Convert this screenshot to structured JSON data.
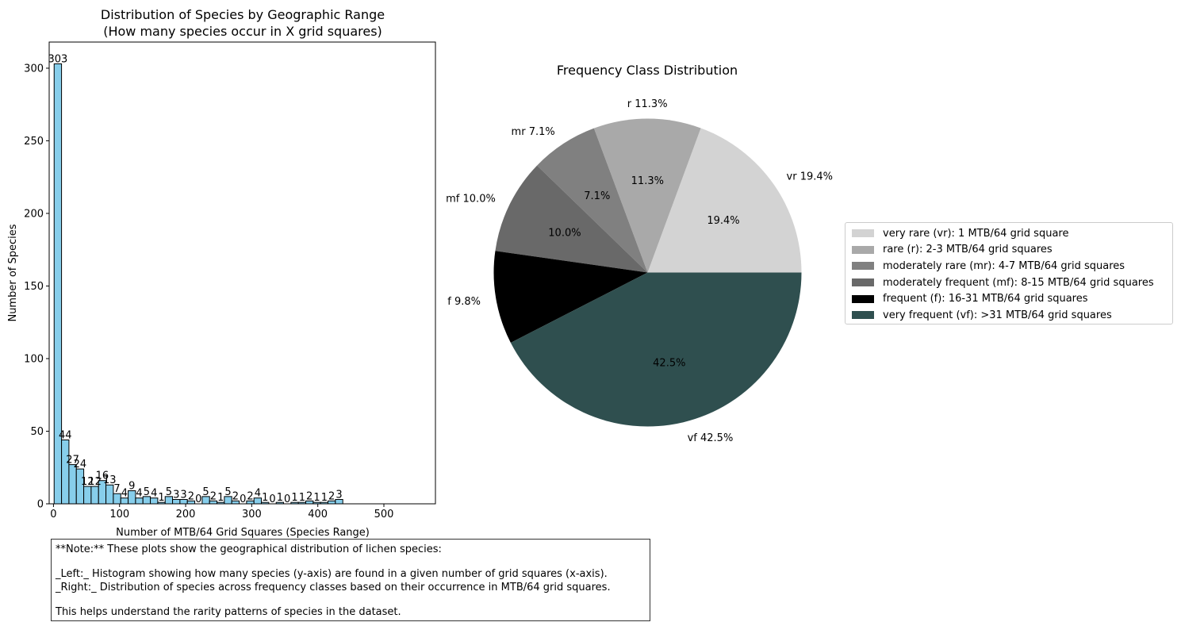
{
  "chart_data": [
    {
      "type": "bar",
      "title": "Distribution of Species by Geographic Range\n(How many species occur in X grid squares)",
      "xlabel": "Number of MTB/64 Grid Squares (Species Range)",
      "ylabel": "Number of Species",
      "bin_start": 1,
      "bin_width": 11.2,
      "values": [
        303,
        44,
        27,
        24,
        12,
        12,
        16,
        13,
        7,
        4,
        9,
        4,
        5,
        4,
        1,
        5,
        3,
        3,
        2,
        0,
        5,
        2,
        1,
        5,
        2,
        0,
        2,
        4,
        1,
        0,
        1,
        0,
        1,
        1,
        2,
        1,
        1,
        2,
        3
      ],
      "bar_color": "#87ceeb",
      "xlim": [
        -6.5,
        578
      ],
      "ylim": [
        0,
        318
      ],
      "xticks": [
        0,
        100,
        200,
        300,
        400,
        500
      ],
      "yticks": [
        0,
        50,
        100,
        150,
        200,
        250,
        300
      ]
    },
    {
      "type": "pie",
      "title": "Frequency Class Distribution",
      "labels": [
        "vr",
        "r",
        "mr",
        "mf",
        "f",
        "vf"
      ],
      "values": [
        19.4,
        11.3,
        7.1,
        10.0,
        9.8,
        42.5
      ],
      "outer_labels": [
        "vr 19.4%",
        "r 11.3%",
        "mr 7.1%",
        "mf 10.0%",
        "f 9.8%",
        "vf 42.5%"
      ],
      "pct_labels": [
        "19.4%",
        "11.3%",
        "7.1%",
        "10.0%",
        "9.8%",
        "42.5%"
      ],
      "colors": [
        "#d3d3d3",
        "#a9a9a9",
        "#808080",
        "#696969",
        "#000000",
        "#2f4f4f"
      ],
      "legend": [
        "very rare (vr): 1 MTB/64 grid square",
        "rare (r): 2-3 MTB/64 grid squares",
        "moderately rare (mr): 4-7 MTB/64 grid squares",
        "moderately frequent (mf): 8-15 MTB/64 grid squares",
        "frequent (f): 16-31 MTB/64 grid squares",
        "very frequent (vf): >31 MTB/64 grid squares"
      ],
      "legend_position": "right"
    }
  ],
  "note": {
    "lines": [
      "**Note:** These plots show the geographical distribution of lichen species:",
      "",
      "_Left:_ Histogram showing how many species (y-axis) are found in a given number of grid squares (x-axis).",
      "_Right:_ Distribution of species across frequency classes based on their occurrence in MTB/64 grid squares.",
      "",
      "This helps understand the rarity patterns of species in the dataset."
    ]
  }
}
